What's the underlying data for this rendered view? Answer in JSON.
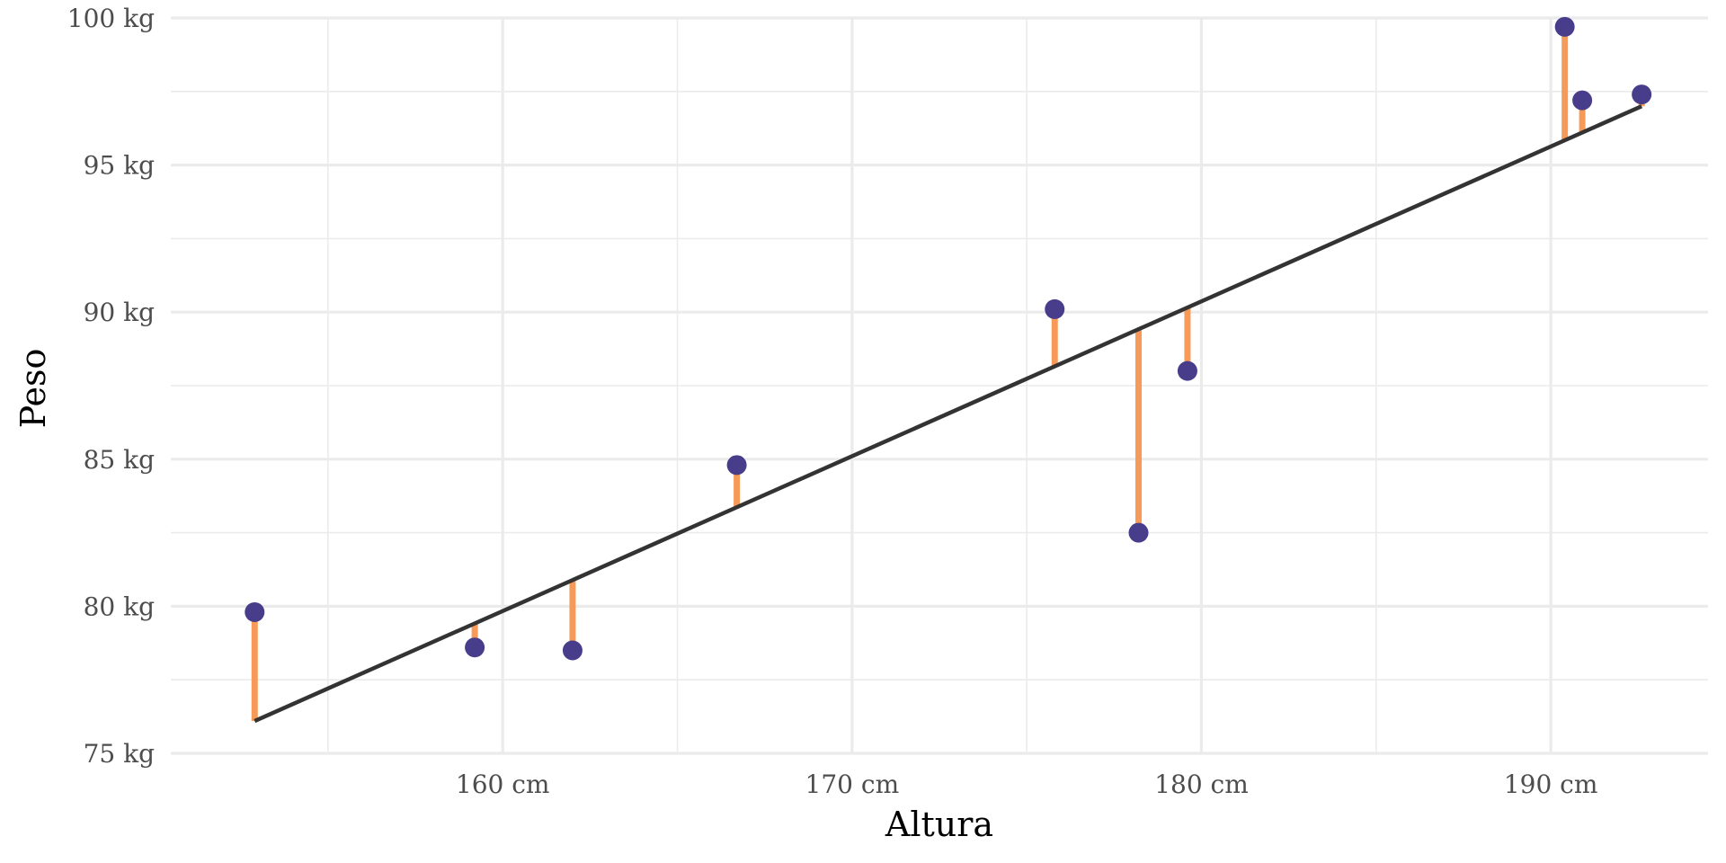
{
  "chart_data": {
    "type": "scatter",
    "title": "",
    "xlabel": "Altura",
    "ylabel": "Peso",
    "xlim": [
      150.5,
      194.5
    ],
    "ylim": [
      75,
      100
    ],
    "x_ticks": [
      160,
      170,
      180,
      190
    ],
    "x_tick_labels": [
      "160 cm",
      "170 cm",
      "180 cm",
      "190 cm"
    ],
    "y_ticks": [
      75,
      80,
      85,
      90,
      95,
      100
    ],
    "y_tick_labels": [
      "75 kg",
      "80 kg",
      "85 kg",
      "90 kg",
      "95 kg",
      "100 kg"
    ],
    "grid": true,
    "points": [
      {
        "x": 152.9,
        "y": 79.8
      },
      {
        "x": 159.2,
        "y": 78.6
      },
      {
        "x": 162.0,
        "y": 78.5
      },
      {
        "x": 166.7,
        "y": 84.8
      },
      {
        "x": 175.8,
        "y": 90.1
      },
      {
        "x": 178.2,
        "y": 82.5
      },
      {
        "x": 179.6,
        "y": 88.0
      },
      {
        "x": 190.4,
        "y": 99.7
      },
      {
        "x": 190.9,
        "y": 97.2
      },
      {
        "x": 192.6,
        "y": 97.4
      }
    ],
    "fit_line": {
      "x": [
        152.9,
        192.6
      ],
      "y": [
        76.1,
        97.0
      ]
    },
    "residuals_shown": true,
    "colors": {
      "points": "#483D8B",
      "residuals": "#F79A58",
      "fit_line": "#333333"
    }
  }
}
